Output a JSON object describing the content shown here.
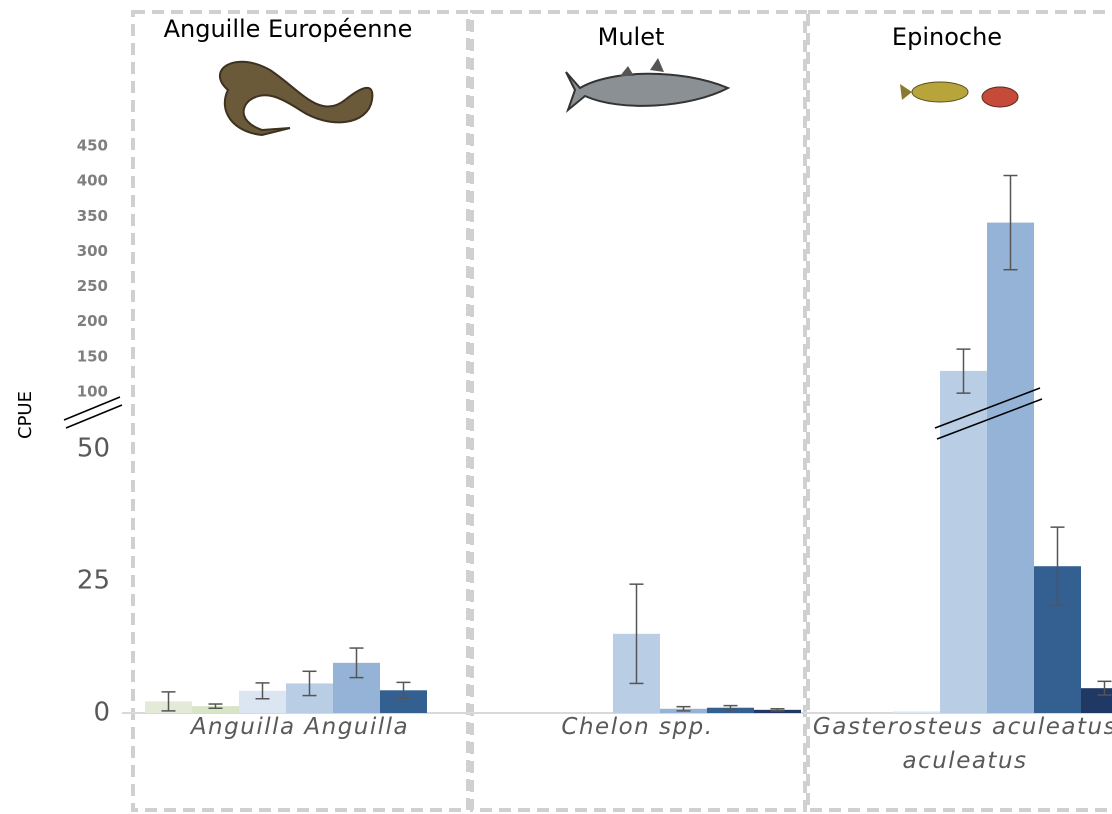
{
  "chart_data": {
    "type": "bar",
    "ylabel": "CPUE",
    "panel_titles": [
      "Anguille Européenne",
      "Mulet",
      "Epinoche"
    ],
    "categories": [
      "Anguilla Anguilla",
      "Chelon spp.",
      "Gasterosteus aculeatus aculeatus"
    ],
    "ylim": [
      0,
      450
    ],
    "y_break": [
      50,
      100
    ],
    "yticks": [
      0,
      25,
      50,
      100,
      150,
      200,
      250,
      300,
      350,
      400,
      450
    ],
    "series": [
      {
        "color": "#e3ead8",
        "values": [
          2.2,
          0,
          0
        ],
        "errors": [
          1.8,
          null,
          null
        ]
      },
      {
        "color": "#d7e4c5",
        "values": [
          1.3,
          0,
          0
        ],
        "errors": [
          0.4,
          null,
          null
        ]
      },
      {
        "color": "#dce6f2",
        "values": [
          4.2,
          0,
          0.3
        ],
        "errors": [
          1.5,
          null,
          null
        ]
      },
      {
        "color": "#b9cde5",
        "values": [
          5.6,
          15,
          130
        ],
        "errors": [
          2.3,
          9.4,
          31
        ]
      },
      {
        "color": "#95b3d7",
        "values": [
          9.5,
          0.8,
          341
        ],
        "errors": [
          2.8,
          0.4,
          67
        ]
      },
      {
        "color": "#335f91",
        "values": [
          4.3,
          1.0,
          27.8
        ],
        "errors": [
          1.5,
          0.4,
          7.4
        ]
      },
      {
        "color": "#1f3864",
        "values": [
          0,
          0.6,
          4.7
        ],
        "errors": [
          null,
          0.2,
          1.3
        ]
      }
    ]
  }
}
